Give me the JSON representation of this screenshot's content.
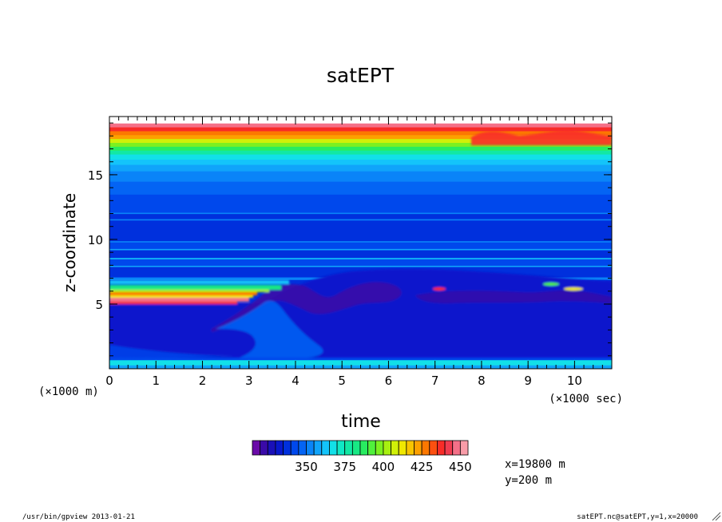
{
  "chart_data": {
    "type": "heatmap",
    "title": "satEPT",
    "xlabel": "time",
    "ylabel": "z-coordinate",
    "x_unit": "(×1000 sec)",
    "y_unit": "(×1000 m)",
    "xlim": [
      0,
      10.8
    ],
    "ylim": [
      0,
      19.5
    ],
    "x_ticks": [
      0,
      1,
      2,
      3,
      4,
      5,
      6,
      7,
      8,
      9,
      10
    ],
    "x_tick_labels": [
      "0",
      "1",
      "2",
      "3",
      "4",
      "5",
      "6",
      "7",
      "8",
      "9",
      "10"
    ],
    "y_ticks": [
      5,
      10,
      15
    ],
    "y_tick_labels": [
      "5",
      "10",
      "15"
    ],
    "colorbar": {
      "levels": [
        320,
        325,
        330,
        335,
        340,
        345,
        350,
        355,
        360,
        365,
        370,
        375,
        380,
        385,
        390,
        395,
        400,
        405,
        410,
        415,
        420,
        425,
        430,
        435,
        440,
        445,
        450
      ],
      "tick_values": [
        350,
        375,
        400,
        425,
        450
      ],
      "tick_labels": [
        "350",
        "375",
        "400",
        "425",
        "450"
      ],
      "colors": [
        "#6a0aa8",
        "#3a0aa8",
        "#1a10b8",
        "#0818cc",
        "#0030dd",
        "#0048ec",
        "#0464f4",
        "#0a84f8",
        "#10a4fa",
        "#14c4fa",
        "#12e0e8",
        "#10e8c4",
        "#12e8a4",
        "#18e884",
        "#28ec60",
        "#50f03c",
        "#7cf020",
        "#a8f010",
        "#d0f008",
        "#f0e800",
        "#f8c400",
        "#fca000",
        "#fc7800",
        "#fc5010",
        "#f82c28",
        "#f03c50",
        "#f47088",
        "#f89ca8"
      ]
    },
    "annotations": [
      "x=19800 m",
      "y=200 m"
    ]
  },
  "footer": {
    "left": "/usr/bin/gpview  2013-01-21",
    "right": "satEPT.nc@satEPT,y=1,x=20000"
  },
  "colors": {
    "background": "#ffffff",
    "axes": "#000000"
  }
}
